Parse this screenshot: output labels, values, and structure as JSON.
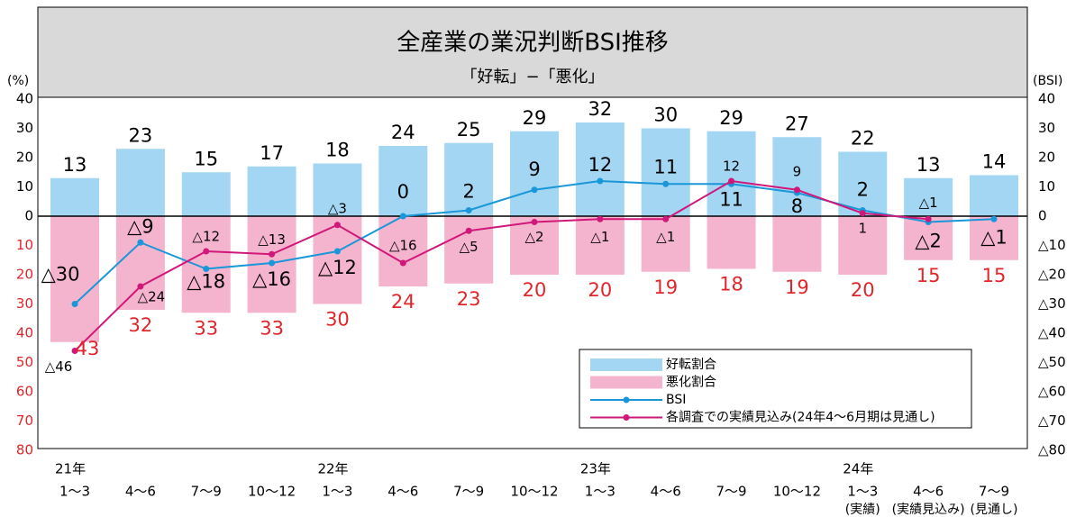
{
  "chart_data": {
    "type": "bar-line",
    "title": "全産業の業況判断BSI推移",
    "subtitle": "「好転」−「悪化」",
    "ylabel": "(%)",
    "y2label": "(BSI)",
    "categories": [
      "1〜3",
      "4〜6",
      "7〜9",
      "10〜12",
      "1〜3",
      "4〜6",
      "7〜9",
      "10〜12",
      "1〜3",
      "4〜6",
      "7〜9",
      "10〜12",
      "1〜3",
      "4〜6",
      "7〜9"
    ],
    "years": [
      "21年",
      null,
      null,
      null,
      "22年",
      null,
      null,
      null,
      "23年",
      null,
      null,
      null,
      "24年",
      null,
      null
    ],
    "notes": [
      null,
      null,
      null,
      null,
      null,
      null,
      null,
      null,
      null,
      null,
      null,
      null,
      "(実績)",
      "(実績見込み)",
      "(見通し)"
    ],
    "ylim": [
      -80,
      40
    ],
    "yticks": [
      40,
      30,
      20,
      10,
      0,
      {
        "value": -10,
        "label": "10"
      },
      {
        "value": -20,
        "label": "20"
      },
      {
        "value": -30,
        "label": "30"
      },
      {
        "value": -40,
        "label": "40"
      },
      {
        "value": -50,
        "label": "50"
      },
      {
        "value": -60,
        "label": "60"
      },
      {
        "value": -70,
        "label": "70"
      },
      {
        "value": -80,
        "label": "80"
      }
    ],
    "y2lim": [
      -80,
      40
    ],
    "y2ticks": [
      40,
      30,
      20,
      10,
      0,
      {
        "value": -10,
        "label": "△10"
      },
      {
        "value": -20,
        "label": "△20"
      },
      {
        "value": -30,
        "label": "△30"
      },
      {
        "value": -40,
        "label": "△40"
      },
      {
        "value": -50,
        "label": "△50"
      },
      {
        "value": -60,
        "label": "△60"
      },
      {
        "value": -70,
        "label": "△70"
      },
      {
        "value": -80,
        "label": "△80"
      }
    ],
    "legend": "lower right",
    "series": [
      {
        "name": "好転割合",
        "kind": "bar",
        "color": "#a3d6f2",
        "values": [
          13,
          23,
          15,
          17,
          18,
          24,
          25,
          29,
          32,
          30,
          29,
          27,
          22,
          13,
          14
        ]
      },
      {
        "name": "悪化割合",
        "kind": "bar",
        "color": "#f5b4cd",
        "values": [
          -43,
          -32,
          -33,
          -33,
          -30,
          -24,
          -23,
          -20,
          -20,
          -19,
          -18,
          -19,
          -20,
          -15,
          -15
        ],
        "value_labels": [
          "43",
          "32",
          "33",
          "33",
          "30",
          "24",
          "23",
          "20",
          "20",
          "19",
          "18",
          "19",
          "20",
          "15",
          "15"
        ]
      },
      {
        "name": "BSI",
        "kind": "line",
        "axis": "y2",
        "color": "#1a97d9",
        "values": [
          -30,
          -9,
          -18,
          -16,
          -12,
          0,
          2,
          9,
          12,
          11,
          11,
          8,
          2,
          -2,
          -1
        ],
        "value_labels": [
          "△30",
          "△9",
          "△18",
          "△16",
          "△12",
          "0",
          "2",
          "9",
          "12",
          "11",
          "11",
          "8",
          "2",
          "△2",
          "△1"
        ]
      },
      {
        "name": "各調査での実績見込み(24年4〜6月期は見通し)",
        "kind": "line",
        "axis": "y2",
        "color": "#d0187a",
        "values": [
          -46,
          -24,
          -12,
          -13,
          -3,
          -16,
          -5,
          -2,
          -1,
          -1,
          12,
          9,
          1,
          -1,
          null
        ],
        "value_labels": [
          "△46",
          "△24",
          "△12",
          "△13",
          "△3",
          "△16",
          "△5",
          "△2",
          "△1",
          "△1",
          "12",
          "9",
          "1",
          "△1",
          null
        ]
      }
    ]
  }
}
